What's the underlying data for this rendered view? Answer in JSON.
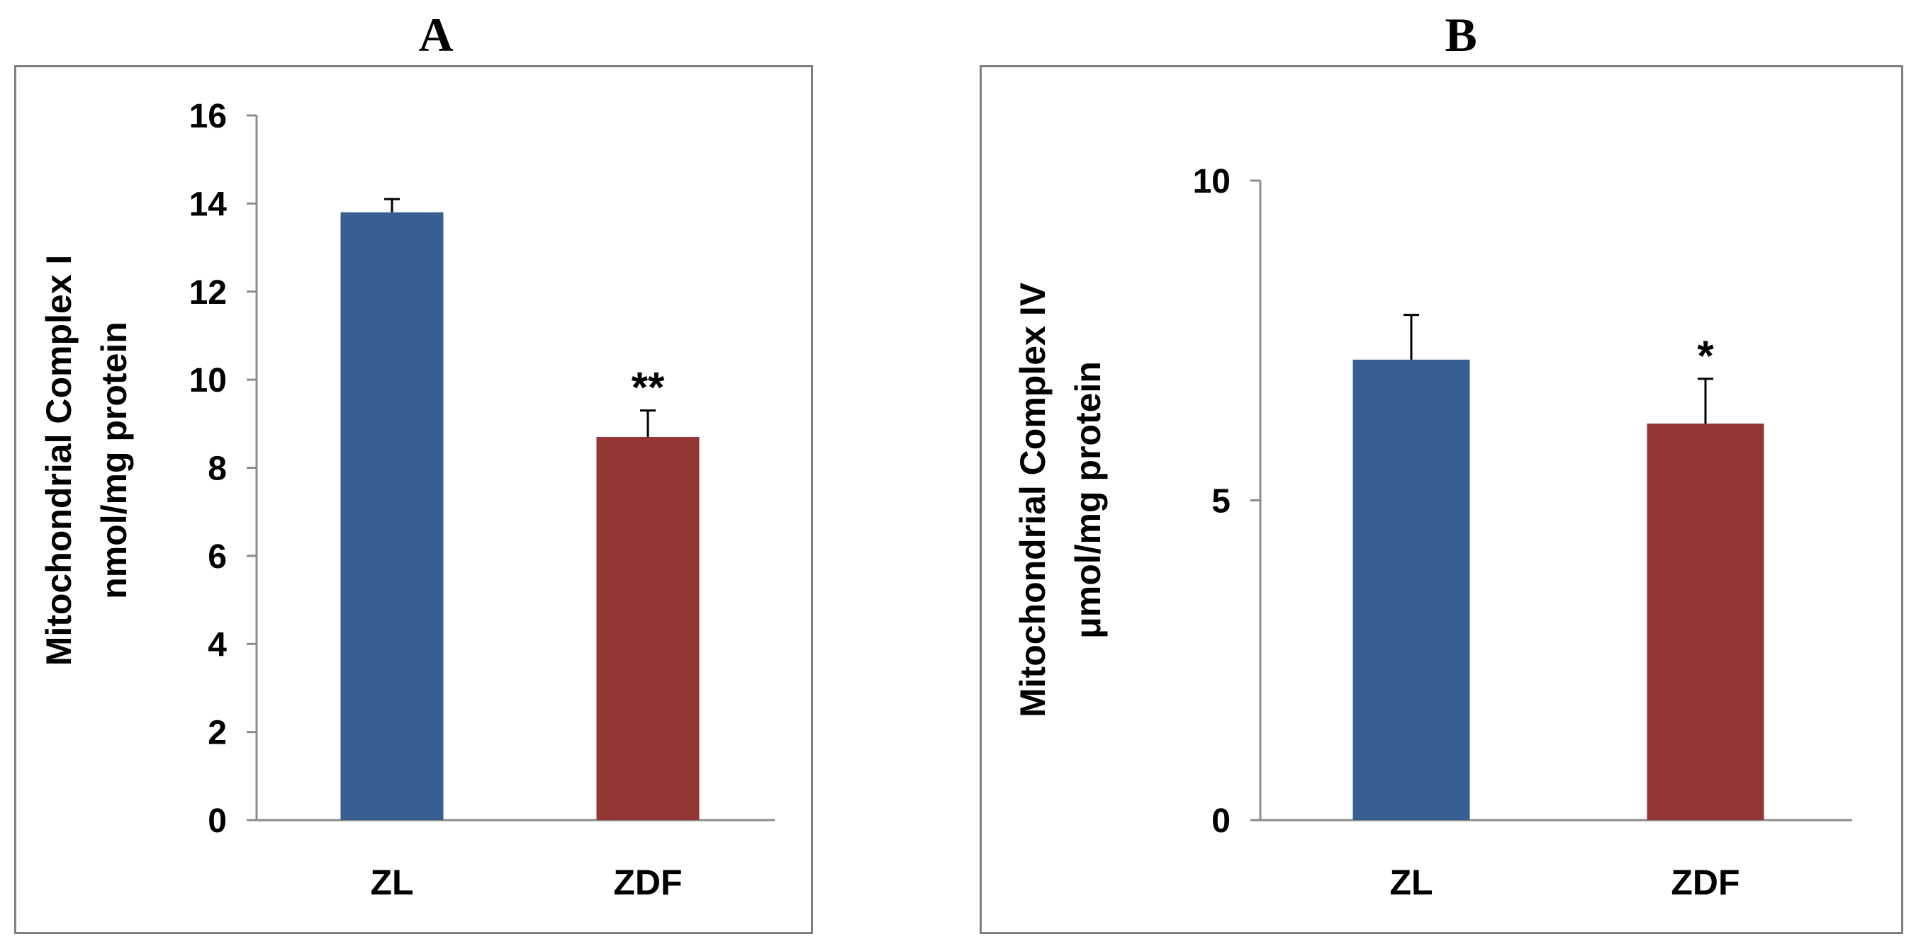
{
  "panels": [
    {
      "label": "A"
    },
    {
      "label": "B"
    }
  ],
  "colors": {
    "zl": "#375f91",
    "zdf": "#943634",
    "axis": "#8c8c8c",
    "frame": "#7f7f7f"
  },
  "chart_data": [
    {
      "type": "bar",
      "panel": "A",
      "categories": [
        "ZL",
        "ZDF"
      ],
      "values": [
        13.8,
        8.7
      ],
      "errors": [
        0.3,
        0.6
      ],
      "annotations": [
        "",
        "**"
      ],
      "ylabel_line1": "Mitochondrial Complex I",
      "ylabel_line2": "nmol/mg protein",
      "ylim": [
        0,
        16
      ],
      "yticks": [
        0,
        2,
        4,
        6,
        8,
        10,
        12,
        14,
        16
      ],
      "grid": false,
      "legend": "none"
    },
    {
      "type": "bar",
      "panel": "B",
      "categories": [
        "ZL",
        "ZDF"
      ],
      "values": [
        7.2,
        6.2
      ],
      "errors": [
        0.7,
        0.7
      ],
      "annotations": [
        "",
        "*"
      ],
      "ylabel_line1": "Mitochondrial Complex IV",
      "ylabel_line2": "μmol/mg protein",
      "ylim": [
        0,
        10
      ],
      "yticks": [
        0,
        5,
        10
      ],
      "grid": false,
      "legend": "none"
    }
  ]
}
